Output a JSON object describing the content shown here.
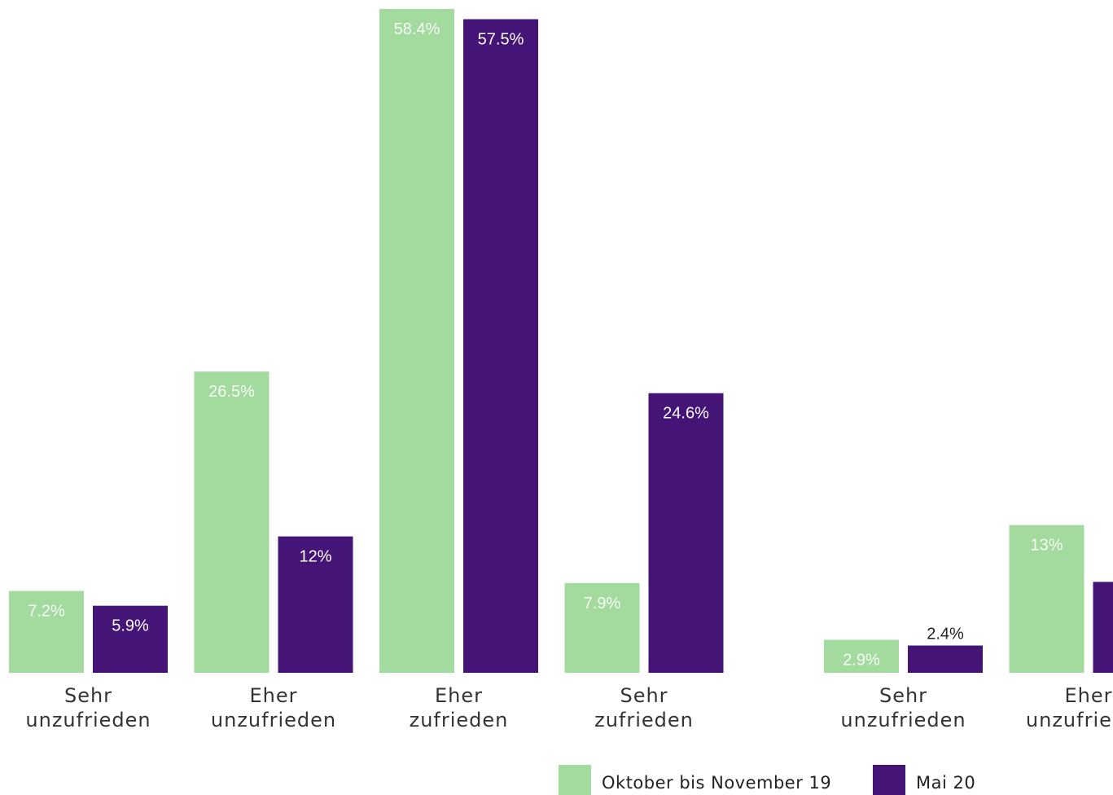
{
  "chart_data": {
    "type": "bar",
    "ylim": [
      0,
      58.4
    ],
    "grid": false,
    "legend_position": "bottom",
    "series": [
      {
        "name": "Oktober bis November 19",
        "color": "#a3da9e"
      },
      {
        "name": "Mai 20",
        "color": "#441577"
      }
    ],
    "groups": [
      {
        "categories": [
          {
            "line1": "Sehr",
            "line2": "unzufrieden",
            "values": [
              7.2,
              5.9
            ],
            "labels": [
              "7.2%",
              "5.9%"
            ]
          },
          {
            "line1": "Eher",
            "line2": "unzufrieden",
            "values": [
              26.5,
              12
            ],
            "labels": [
              "26.5%",
              "12%"
            ]
          },
          {
            "line1": "Eher",
            "line2": "zufrieden",
            "values": [
              58.4,
              57.5
            ],
            "labels": [
              "58.4%",
              "57.5%"
            ]
          },
          {
            "line1": "Sehr",
            "line2": "zufrieden",
            "values": [
              7.9,
              24.6
            ],
            "labels": [
              "7.9%",
              "24.6%"
            ]
          }
        ]
      },
      {
        "categories": [
          {
            "line1": "Sehr",
            "line2": "unzufrieden",
            "values": [
              2.9,
              2.4
            ],
            "labels": [
              "2.9%",
              "2.4%"
            ]
          },
          {
            "line1": "Eher",
            "line2": "unzufrieden",
            "values": [
              13,
              8.0
            ],
            "labels": [
              "13%",
              ""
            ]
          }
        ]
      }
    ]
  }
}
